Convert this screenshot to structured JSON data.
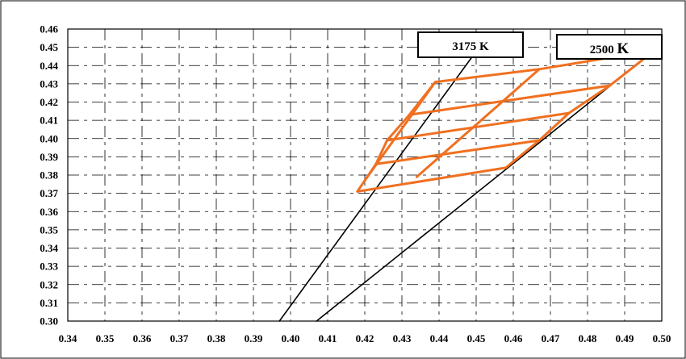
{
  "chart_data": {
    "type": "line",
    "title": "",
    "xlabel": "",
    "ylabel": "",
    "xlim": [
      0.34,
      0.5
    ],
    "ylim": [
      0.3,
      0.46
    ],
    "x_ticks": [
      "0.34",
      "0.35",
      "0.36",
      "0.37",
      "0.38",
      "0.39",
      "0.40",
      "0.41",
      "0.42",
      "0.43",
      "0.44",
      "0.45",
      "0.46",
      "0.47",
      "0.48",
      "0.49",
      "0.50"
    ],
    "y_ticks": [
      "0.46",
      "0.45",
      "0.44",
      "0.43",
      "0.42",
      "0.41",
      "0.40",
      "0.39",
      "0.38",
      "0.37",
      "0.36",
      "0.35",
      "0.34",
      "0.33",
      "0.32",
      "0.31",
      "0.30"
    ],
    "grid": true,
    "annotations": {
      "label_left": {
        "text_number": "3175",
        "text_unit": "K"
      },
      "label_right": {
        "text_number": "2500",
        "text_unit": "K"
      }
    },
    "series": [
      {
        "color": "#000000",
        "values": [
          [
            0.397,
            0.3
          ],
          [
            0.449,
            0.445
          ]
        ]
      },
      {
        "color": "#000000",
        "values": [
          [
            0.407,
            0.3
          ],
          [
            0.496,
            0.445
          ]
        ]
      },
      {
        "color": "#F07020",
        "values": [
          [
            0.418,
            0.371
          ],
          [
            0.42,
            0.377
          ],
          [
            0.423,
            0.386
          ],
          [
            0.426,
            0.399
          ],
          [
            0.432,
            0.413
          ],
          [
            0.439,
            0.431
          ],
          [
            0.467,
            0.438
          ],
          [
            0.488,
            0.445
          ]
        ]
      },
      {
        "color": "#F07020",
        "values": [
          [
            0.418,
            0.371
          ],
          [
            0.458,
            0.384
          ],
          [
            0.467,
            0.399
          ],
          [
            0.475,
            0.414
          ],
          [
            0.486,
            0.429
          ],
          [
            0.496,
            0.445
          ]
        ]
      },
      {
        "color": "#F07020",
        "values": [
          [
            0.42,
            0.377
          ],
          [
            0.439,
            0.431
          ]
        ]
      },
      {
        "color": "#F07020",
        "values": [
          [
            0.423,
            0.386
          ],
          [
            0.467,
            0.399
          ]
        ]
      },
      {
        "color": "#F07020",
        "values": [
          [
            0.426,
            0.399
          ],
          [
            0.475,
            0.414
          ]
        ]
      },
      {
        "color": "#F07020",
        "values": [
          [
            0.432,
            0.413
          ],
          [
            0.486,
            0.429
          ]
        ]
      },
      {
        "color": "#F07020",
        "values": [
          [
            0.434,
            0.379
          ],
          [
            0.467,
            0.438
          ]
        ]
      }
    ]
  }
}
